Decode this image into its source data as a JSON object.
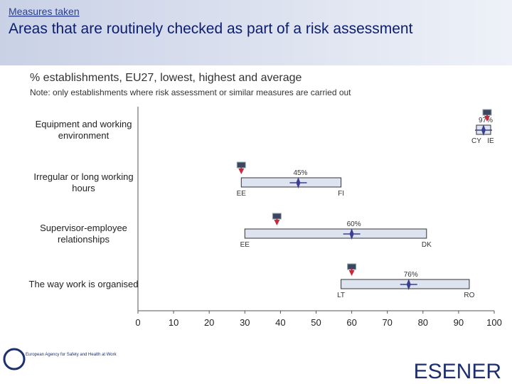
{
  "header": {
    "section": "Measures taken",
    "title": "Areas that are routinely checked as part of a risk assessment"
  },
  "chart_data": {
    "type": "range",
    "subtitle": "% establishments, EU27, lowest, highest and average",
    "note": "Note: only establishments where risk assessment or similar measures are carried out",
    "categories": [
      "Equipment and working environment",
      "Irregular or long working hours",
      "Supervisor-employee relationships",
      "The way work is organised"
    ],
    "min_values": [
      95,
      29,
      30,
      57
    ],
    "min_labels": [
      "CY",
      "EE",
      "EE",
      "LT"
    ],
    "max_values": [
      99,
      57,
      81,
      93
    ],
    "max_labels": [
      "IE",
      "FI",
      "DK",
      "RO"
    ],
    "values": [
      97,
      45,
      60,
      76
    ],
    "value_labels": [
      "97%",
      "45%",
      "60%",
      "76%"
    ],
    "flag_values": [
      98,
      29,
      39,
      60
    ],
    "bar_color": "#dde3ef",
    "marker_color": "#3b3f8f",
    "flag_color": "#c8283a",
    "xlim": [
      0,
      100
    ],
    "xticks": [
      0,
      10,
      20,
      30,
      40,
      50,
      60,
      70,
      80,
      90,
      100
    ]
  },
  "footer": {
    "agency": "European Agency for Safety and Health at Work",
    "brand": "ESENER"
  }
}
